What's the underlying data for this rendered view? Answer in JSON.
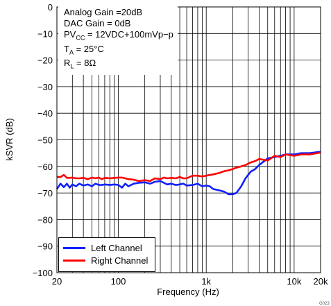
{
  "chart_data": {
    "type": "line",
    "title": "",
    "xlabel": "Frequency (Hz)",
    "ylabel": "kSVR (dB)",
    "xscale": "log",
    "xlim": [
      20,
      20000
    ],
    "ylim": [
      -100,
      0
    ],
    "grid": true,
    "legend_placement": "bottom-left",
    "x_tick_labels": [
      "20",
      "100",
      "1k",
      "10k",
      "20k"
    ],
    "y_tick_labels": [
      "0",
      "−10",
      "−20",
      "−30",
      "−40",
      "−50",
      "−60",
      "−70",
      "−80",
      "−90",
      "−100"
    ],
    "conditions": {
      "line1": "Analog Gain =20dB",
      "line2": "DAC Gain = 0dB",
      "line3_prefix": "PV",
      "line3_sub": "CC",
      "line3_rest": " = 12VDC+100mVp−p",
      "line4_prefix": "T",
      "line4_sub": "A",
      "line4_rest": " = 25°C",
      "line5_prefix": "R",
      "line5_sub": "L",
      "line5_rest": " = 8Ω"
    },
    "series": [
      {
        "name": "Left Channel",
        "color": "#1020ff",
        "x": [
          20,
          22,
          24,
          26,
          28,
          30,
          33,
          36,
          40,
          45,
          50,
          55,
          60,
          65,
          70,
          80,
          90,
          100,
          110,
          120,
          130,
          150,
          170,
          200,
          230,
          260,
          300,
          330,
          360,
          400,
          450,
          500,
          550,
          600,
          700,
          800,
          900,
          1000,
          1100,
          1200,
          1400,
          1600,
          1800,
          2000,
          2200,
          2500,
          2800,
          3200,
          3600,
          4000,
          5000,
          6000,
          7000,
          8000,
          10000,
          12000,
          15000,
          20000
        ],
        "y": [
          -68.5,
          -66.5,
          -67.8,
          -66.5,
          -68.0,
          -66.8,
          -67.5,
          -66.5,
          -67.2,
          -66.8,
          -67.5,
          -66.5,
          -67.0,
          -67.0,
          -66.8,
          -67.0,
          -66.8,
          -67.0,
          -68.0,
          -66.5,
          -67.5,
          -66.5,
          -66.2,
          -66.0,
          -66.5,
          -65.8,
          -65.5,
          -66.2,
          -66.8,
          -66.5,
          -67.0,
          -66.8,
          -66.5,
          -67.2,
          -67.0,
          -66.5,
          -67.5,
          -67.2,
          -67.5,
          -68.5,
          -69.0,
          -69.5,
          -70.5,
          -70.5,
          -70.0,
          -67.5,
          -64.5,
          -62.0,
          -61.0,
          -59.5,
          -57.0,
          -56.5,
          -56.0,
          -55.5,
          -55.5,
          -55.0,
          -55.0,
          -54.5
        ]
      },
      {
        "name": "Right Channel",
        "color": "#ff0000",
        "x": [
          20,
          22,
          24,
          26,
          28,
          30,
          33,
          36,
          40,
          45,
          50,
          55,
          60,
          65,
          70,
          80,
          90,
          100,
          110,
          120,
          130,
          150,
          170,
          200,
          230,
          260,
          300,
          330,
          360,
          400,
          450,
          500,
          550,
          600,
          700,
          800,
          900,
          1000,
          1100,
          1200,
          1400,
          1600,
          1800,
          2000,
          2200,
          2500,
          2800,
          3200,
          3600,
          4000,
          5000,
          6000,
          7000,
          8000,
          10000,
          12000,
          15000,
          20000
        ],
        "y": [
          -64.0,
          -64.0,
          -63.2,
          -64.3,
          -64.3,
          -64.2,
          -64.5,
          -64.5,
          -64.3,
          -64.8,
          -64.2,
          -64.5,
          -64.2,
          -64.8,
          -64.3,
          -64.5,
          -64.3,
          -64.2,
          -64.2,
          -64.5,
          -64.8,
          -65.0,
          -65.5,
          -65.2,
          -65.5,
          -64.5,
          -64.8,
          -64.2,
          -64.5,
          -64.3,
          -64.5,
          -64.0,
          -64.5,
          -64.5,
          -63.5,
          -63.5,
          -63.8,
          -63.5,
          -63.2,
          -63.0,
          -62.5,
          -61.8,
          -61.5,
          -61.0,
          -60.5,
          -60.0,
          -59.5,
          -58.5,
          -58.0,
          -57.2,
          -57.8,
          -56.0,
          -56.5,
          -55.5,
          -56.0,
          -55.5,
          -55.5,
          -54.8
        ]
      }
    ],
    "footer_code": "G023"
  }
}
